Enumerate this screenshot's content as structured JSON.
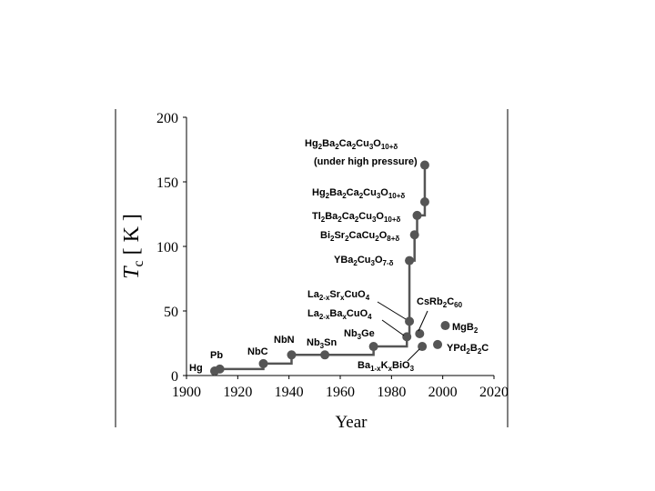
{
  "chart_data": {
    "type": "scatter",
    "x_label": "Year",
    "y_label": "Tc [ K ]",
    "xlim": [
      1900,
      2020
    ],
    "xticks": [
      1900,
      1920,
      1940,
      1960,
      1980,
      2000,
      2020
    ],
    "ylim": [
      0,
      200
    ],
    "yticks": [
      0,
      50,
      100,
      150,
      200
    ],
    "series": [
      {
        "color": "#555555",
        "step": true,
        "x": [
          1911,
          1913,
          1930,
          1941,
          1954,
          1973,
          1986,
          1987,
          1987,
          1989,
          1990,
          1993,
          1993
        ],
        "values": [
          3.5,
          5,
          9.2,
          16,
          16,
          22.5,
          30,
          42,
          89,
          109,
          124,
          134.5,
          163
        ],
        "labels": [
          "Hg",
          "Pb",
          "NbC",
          "NbN",
          "Nb3Sn",
          "Nb3Ge",
          "La2-xBaxCuO4",
          "La2-xSrxCuO4",
          "YBa2Cu3O7-δ",
          "Bi2Sr2CaCu2O8+δ",
          "Tl2Ba2Ca2Cu3O10+δ",
          "Hg2Ba2Ca2Cu3O10+δ",
          "Hg2Ba2Ca2Cu3O10+δ"
        ]
      },
      {
        "color": "#555555",
        "step": false,
        "x": [
          1991,
          1992,
          1998,
          2001
        ],
        "values": [
          32.4,
          22.5,
          24,
          38.7
        ],
        "labels": [
          "CsRb2C60",
          "Ba1-xKxBiO3",
          "YPd2B2C",
          "MgB2"
        ]
      }
    ],
    "annotation": "(under high pressure)"
  }
}
